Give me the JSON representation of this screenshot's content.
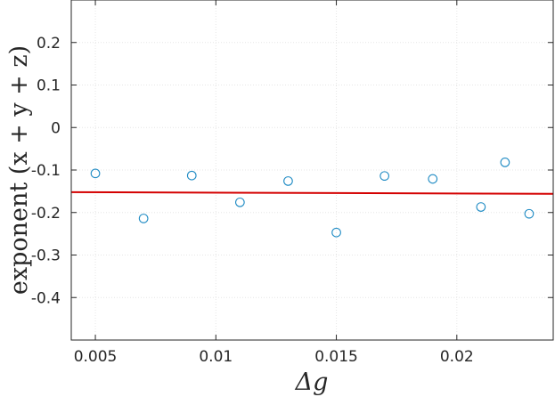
{
  "chart_data": {
    "type": "scatter",
    "title": "",
    "xlabel": "Δg",
    "ylabel": "exponent (x + y + z)",
    "xlim": [
      0.004,
      0.024
    ],
    "ylim": [
      -0.5,
      0.3
    ],
    "xticks": [
      0.005,
      0.01,
      0.015,
      0.02
    ],
    "xtick_labels": [
      "0.005",
      "0.01",
      "0.015",
      "0.02"
    ],
    "yticks": [
      0.2,
      0.1,
      0,
      -0.1,
      -0.2,
      -0.3,
      -0.4
    ],
    "ytick_labels": [
      "0.2",
      "0.1",
      "0",
      "-0.1",
      "-0.2",
      "-0.3",
      "-0.4"
    ],
    "grid": true,
    "series": [
      {
        "marker": "circle",
        "color": "#1f8bc4",
        "x": [
          0.005,
          0.007,
          0.009,
          0.011,
          0.013,
          0.015,
          0.017,
          0.019,
          0.021,
          0.022,
          0.023
        ],
        "y": [
          -0.108,
          -0.214,
          -0.113,
          -0.176,
          -0.126,
          -0.247,
          -0.114,
          -0.121,
          -0.187,
          -0.082,
          -0.203
        ]
      },
      {
        "style": "line",
        "color": "#d40000",
        "x": [
          0.004,
          0.024
        ],
        "y": [
          -0.152,
          -0.156
        ]
      }
    ]
  }
}
